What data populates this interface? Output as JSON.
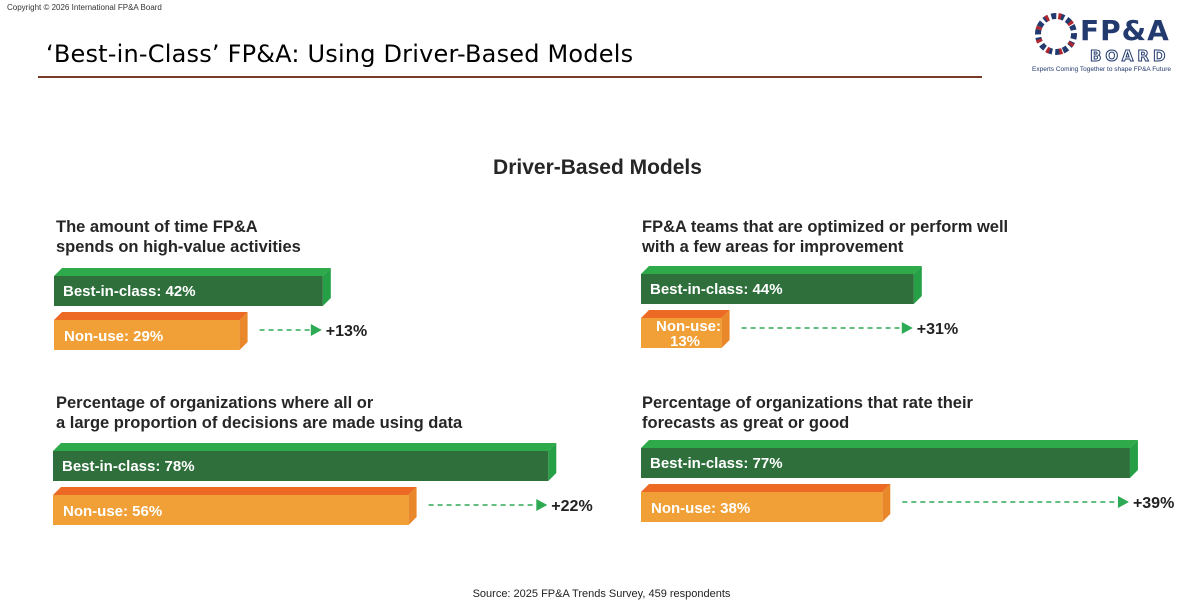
{
  "copyright": "Copyright © 2026 International FP&A Board",
  "page_title": "‘Best-in-Class’ FP&A: Using Driver-Based Models",
  "logo": {
    "line1": "FP&A",
    "line2": "BOARD",
    "tagline": "Experts Coming Together to shape FP&A Future"
  },
  "section_title": "Driver-Based Models",
  "colors": {
    "best_front": "#2e6f3c",
    "best_top": "#2faa4a",
    "best_side": "#25a046",
    "non_front": "#f0a036",
    "non_top": "#ec6a24",
    "non_side": "#e8882a",
    "arrow": "#2eaa55"
  },
  "source": "Source: 2025 FP&A Trends Survey, 459 respondents",
  "chart_data": [
    {
      "type": "bar",
      "title_lines": [
        "The amount of time FP&A",
        "spends on high-value activities"
      ],
      "series": [
        {
          "name": "Best-in-class",
          "value": 42,
          "label_lines": [
            "Best-in-class: 42%"
          ]
        },
        {
          "name": "Non-use",
          "value": 29,
          "label_lines": [
            "Non-use: 29%"
          ]
        }
      ],
      "delta_label": "+13%"
    },
    {
      "type": "bar",
      "title_lines": [
        "FP&A teams that are optimized or perform well",
        "with a few areas for improvement"
      ],
      "series": [
        {
          "name": "Best-in-class",
          "value": 44,
          "label_lines": [
            "Best-in-class: 44%"
          ]
        },
        {
          "name": "Non-use",
          "value": 13,
          "label_lines": [
            "Non-use:",
            "13%"
          ]
        }
      ],
      "delta_label": "+31%"
    },
    {
      "type": "bar",
      "title_lines": [
        "Percentage of organizations where all or",
        "a large proportion of decisions are made using data"
      ],
      "series": [
        {
          "name": "Best-in-class",
          "value": 78,
          "label_lines": [
            "Best-in-class: 78%"
          ]
        },
        {
          "name": "Non-use",
          "value": 56,
          "label_lines": [
            "Non-use: 56%"
          ]
        }
      ],
      "delta_label": "+22%"
    },
    {
      "type": "bar",
      "title_lines": [
        "Percentage of organizations that rate their",
        "forecasts as great or good"
      ],
      "series": [
        {
          "name": "Best-in-class",
          "value": 77,
          "label_lines": [
            "Best-in-class: 77%"
          ]
        },
        {
          "name": "Non-use",
          "value": 38,
          "label_lines": [
            "Non-use: 38%"
          ]
        }
      ],
      "delta_label": "+39%"
    }
  ]
}
